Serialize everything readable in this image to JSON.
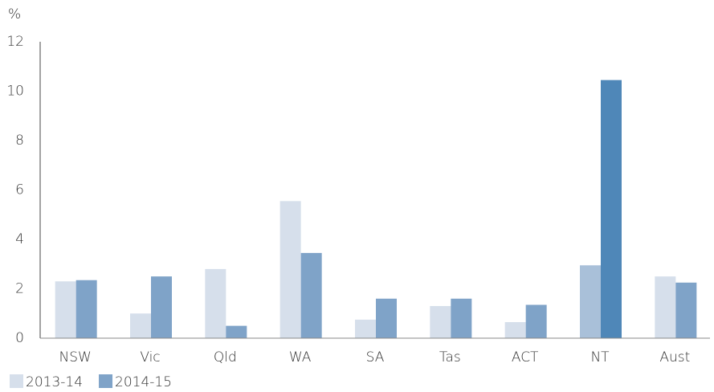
{
  "chart_data": {
    "type": "bar",
    "y_label": "%",
    "categories": [
      "NSW",
      "Vic",
      "Qld",
      "WA",
      "SA",
      "Tas",
      "ACT",
      "NT",
      "Aust"
    ],
    "series": [
      {
        "name": "2013-14",
        "color": "#d6dfeb",
        "bar_colors": [
          "#d6dfeb",
          "#d6dfeb",
          "#d6dfeb",
          "#d6dfeb",
          "#d6dfeb",
          "#d6dfeb",
          "#d6dfeb",
          "#a9c0d9",
          "#d6dfeb"
        ],
        "values": [
          2.3,
          1.0,
          2.8,
          5.55,
          0.75,
          1.3,
          0.65,
          2.95,
          2.5
        ]
      },
      {
        "name": "2014-15",
        "color": "#7fa3c8",
        "bar_colors": [
          "#7fa3c8",
          "#7fa3c8",
          "#7fa3c8",
          "#7fa3c8",
          "#7fa3c8",
          "#7fa3c8",
          "#7fa3c8",
          "#4f87b8",
          "#7fa3c8"
        ],
        "values": [
          2.35,
          2.5,
          0.5,
          3.45,
          1.6,
          1.6,
          1.35,
          10.45,
          2.25
        ]
      }
    ],
    "ylim": [
      0,
      12
    ],
    "yticks": [
      0,
      2,
      4,
      6,
      8,
      10,
      12
    ],
    "grid": false
  }
}
